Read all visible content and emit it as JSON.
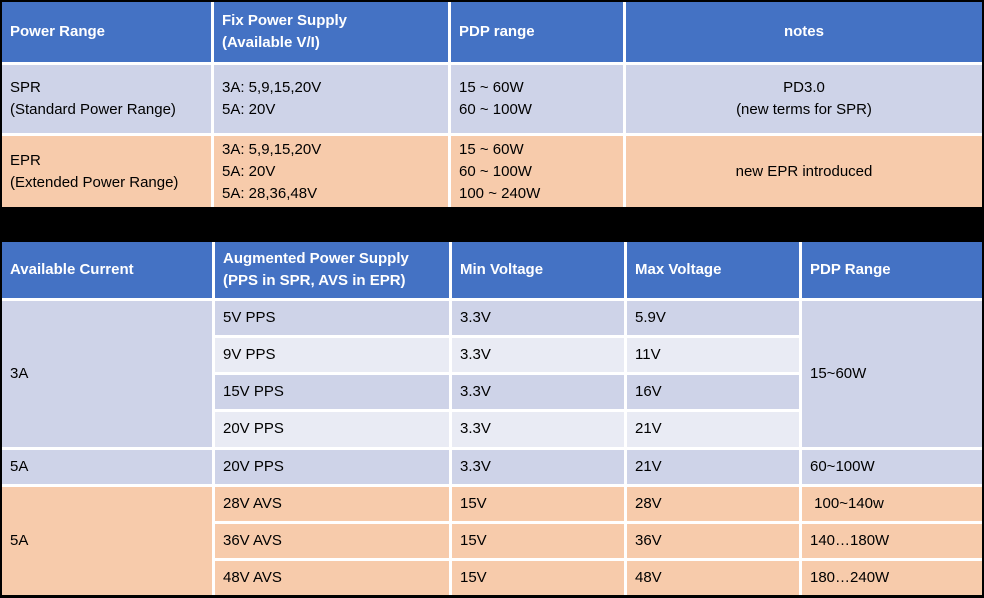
{
  "colors": {
    "header_bg": "#4472C4",
    "header_text": "#FFFFFF",
    "row_lavender": "#CED3E8",
    "row_lavender_light": "#E9EBF4",
    "row_peach": "#F7CBAB",
    "separator": "#000000",
    "cell_gap": "#FFFFFF",
    "body_text": "#000000"
  },
  "table1": {
    "headers": {
      "power_range": "Power Range",
      "fix_power_supply": "Fix Power Supply\n(Available V/I)",
      "pdp_range": "PDP range",
      "notes": "notes"
    },
    "rows": [
      {
        "power_range": "SPR\n(Standard Power Range)",
        "fix_power_supply": "3A: 5,9,15,20V\n5A: 20V",
        "pdp_range": "15 ~ 60W\n60 ~ 100W",
        "notes": "PD3.0\n(new terms for SPR)"
      },
      {
        "power_range": "EPR\n(Extended Power Range)",
        "fix_power_supply": "3A: 5,9,15,20V\n5A: 20V\n5A: 28,36,48V",
        "pdp_range": "15 ~ 60W\n60 ~ 100W\n100 ~ 240W",
        "notes": "new EPR introduced"
      }
    ]
  },
  "table2": {
    "headers": {
      "available_current": "Available Current",
      "augmented_power_supply": "Augmented Power Supply\n(PPS in SPR, AVS in EPR)",
      "min_voltage": "Min Voltage",
      "max_voltage": "Max Voltage",
      "pdp_range": "PDP Range"
    },
    "merged": {
      "current_3a": "3A",
      "pdp_15_60": "15~60W",
      "current_5a_epr": "5A"
    },
    "rows": [
      {
        "supply": "5V PPS",
        "min": "3.3V",
        "max": "5.9V"
      },
      {
        "supply": "9V PPS",
        "min": "3.3V",
        "max": "11V"
      },
      {
        "supply": "15V PPS",
        "min": "3.3V",
        "max": "16V"
      },
      {
        "supply": "20V PPS",
        "min": "3.3V",
        "max": "21V"
      },
      {
        "current": "5A",
        "supply": "20V PPS",
        "min": "3.3V",
        "max": "21V",
        "pdp": "60~100W"
      },
      {
        "supply": "28V AVS",
        "min": "15V",
        "max": "28V",
        "pdp": " 100~140w"
      },
      {
        "supply": "36V AVS",
        "min": "15V",
        "max": "36V",
        "pdp": "140…180W"
      },
      {
        "supply": "48V AVS",
        "min": "15V",
        "max": "48V",
        "pdp": "180…240W"
      }
    ]
  }
}
